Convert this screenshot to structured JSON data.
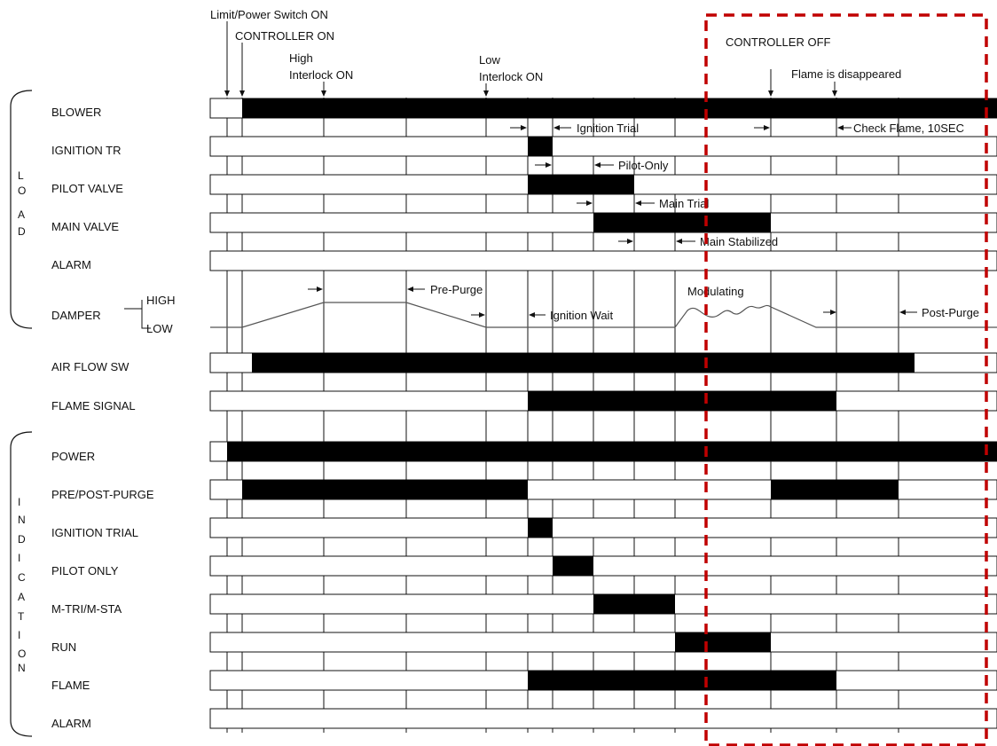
{
  "colors": {
    "bar": "#000000",
    "highlight_box": "#c00000",
    "line": "#111111"
  },
  "groups": {
    "load": [
      "L",
      "O",
      "A",
      "D"
    ],
    "indication": [
      "I",
      "N",
      "D",
      "I",
      "C",
      "A",
      "T",
      "I",
      "O",
      "N"
    ]
  },
  "rows": [
    {
      "id": "blower",
      "label": "BLOWER"
    },
    {
      "id": "ignition_tr",
      "label": "IGNITION TR"
    },
    {
      "id": "pilot_valve",
      "label": "PILOT VALVE"
    },
    {
      "id": "main_valve",
      "label": "MAIN VALVE"
    },
    {
      "id": "alarm_load",
      "label": "ALARM"
    },
    {
      "id": "damper",
      "label": "DAMPER",
      "high": "HIGH",
      "low": "LOW"
    },
    {
      "id": "air_flow_sw",
      "label": "AIR FLOW SW"
    },
    {
      "id": "flame_signal",
      "label": "FLAME SIGNAL"
    },
    {
      "id": "power",
      "label": "POWER"
    },
    {
      "id": "pre_post_purge",
      "label": "PRE/POST-PURGE"
    },
    {
      "id": "ignition_trial",
      "label": "IGNITION TRIAL"
    },
    {
      "id": "pilot_only",
      "label": "PILOT ONLY"
    },
    {
      "id": "m_tri_m_sta",
      "label": "M-TRI/M-STA"
    },
    {
      "id": "run",
      "label": "RUN"
    },
    {
      "id": "flame",
      "label": "FLAME"
    },
    {
      "id": "alarm_ind",
      "label": "ALARM"
    }
  ],
  "events": {
    "limit_power_on": "Limit/Power Switch ON",
    "controller_on": "CONTROLLER ON",
    "high_interlock": [
      "High",
      "Interlock ON"
    ],
    "low_interlock": [
      "Low",
      "Interlock ON"
    ],
    "controller_off": "CONTROLLER OFF",
    "flame_disappeared": "Flame is disappeared"
  },
  "intervals": {
    "ignition_trial": "Ignition Trial",
    "check_flame": "Check Flame, 10SEC",
    "pilot_only": "Pilot-Only",
    "main_trial": "Main Trial",
    "main_stabilized": "Main Stabilized",
    "pre_purge": "Pre-Purge",
    "ignition_wait": "Ignition Wait",
    "modulating": "Modulating",
    "post_purge": "Post-Purge"
  }
}
